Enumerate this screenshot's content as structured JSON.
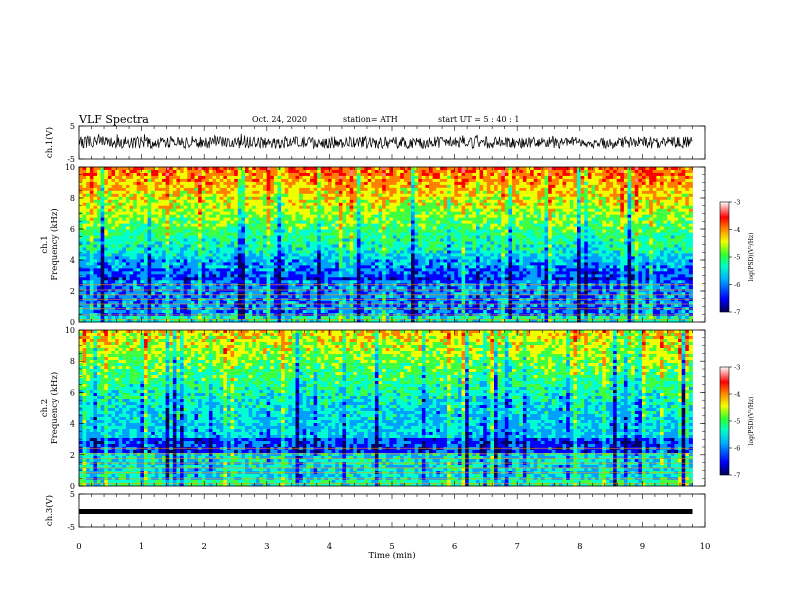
{
  "header": {
    "title": "VLF Spectra",
    "date": "Oct. 24, 2020",
    "station": "station= ATH",
    "start": "start  UT =  5 : 40 : 1"
  },
  "chart_data": [
    {
      "type": "line",
      "panel": "ch1-waveform",
      "ylabel": "ch.1(V)",
      "ylim": [
        -5,
        5
      ],
      "yticks": [
        "5",
        "-5"
      ],
      "xlim": [
        0,
        10
      ],
      "series": [
        {
          "values_description_only": false,
          "trace_range_V": [
            -2,
            3
          ]
        }
      ]
    },
    {
      "type": "heatmap",
      "panel": "ch1-spectrogram",
      "ylabel": "ch.1\nFrequency (kHz)",
      "ylim": [
        0,
        10
      ],
      "yticks": [
        "0",
        "2",
        "4",
        "6",
        "8",
        "10"
      ],
      "xlim": [
        0,
        9.8
      ],
      "colorbar": {
        "label": "log(PSD)(V²/Hz)",
        "ticks": [
          "-3",
          "-4",
          "-5",
          "-6",
          "-7"
        ],
        "range": [
          -7,
          -3
        ]
      }
    },
    {
      "type": "heatmap",
      "panel": "ch2-spectrogram",
      "ylabel": "ch.2\nFrequency (kHz)",
      "ylim": [
        0,
        10
      ],
      "yticks": [
        "0",
        "2",
        "4",
        "6",
        "8",
        "10"
      ],
      "xlim": [
        0,
        9.8
      ],
      "colorbar": {
        "label": "log(PSD)(V²/Hz)",
        "ticks": [
          "-3",
          "-4",
          "-5",
          "-6",
          "-7"
        ],
        "range": [
          -7,
          -3
        ]
      }
    },
    {
      "type": "line",
      "panel": "ch3-waveform",
      "ylabel": "ch.3(V)",
      "ylim": [
        -5,
        5
      ],
      "yticks": [
        "5",
        "-5"
      ],
      "xlim": [
        0,
        10
      ],
      "series": [
        {
          "trace_level_V": 0
        }
      ]
    }
  ],
  "xaxis": {
    "label": "Time (min)",
    "ticks": [
      "0",
      "1",
      "2",
      "3",
      "4",
      "5",
      "6",
      "7",
      "8",
      "9",
      "10"
    ],
    "range": [
      0,
      10
    ]
  },
  "colors": {
    "colormap": [
      "#000060",
      "#0000ff",
      "#00a0ff",
      "#00ffd0",
      "#40ff40",
      "#f0ff00",
      "#ff8000",
      "#ff0000",
      "#ff8080",
      "#ffffff"
    ]
  },
  "labels": {
    "ch1_volts": "ch.1(V)",
    "ch1_freq": "ch.1\nFrequency (kHz)",
    "ch2_freq": "ch.2\nFrequency (kHz)",
    "ch3_volts": "ch.3(V)",
    "cbar": "log(PSD)(V²/Hz)"
  }
}
